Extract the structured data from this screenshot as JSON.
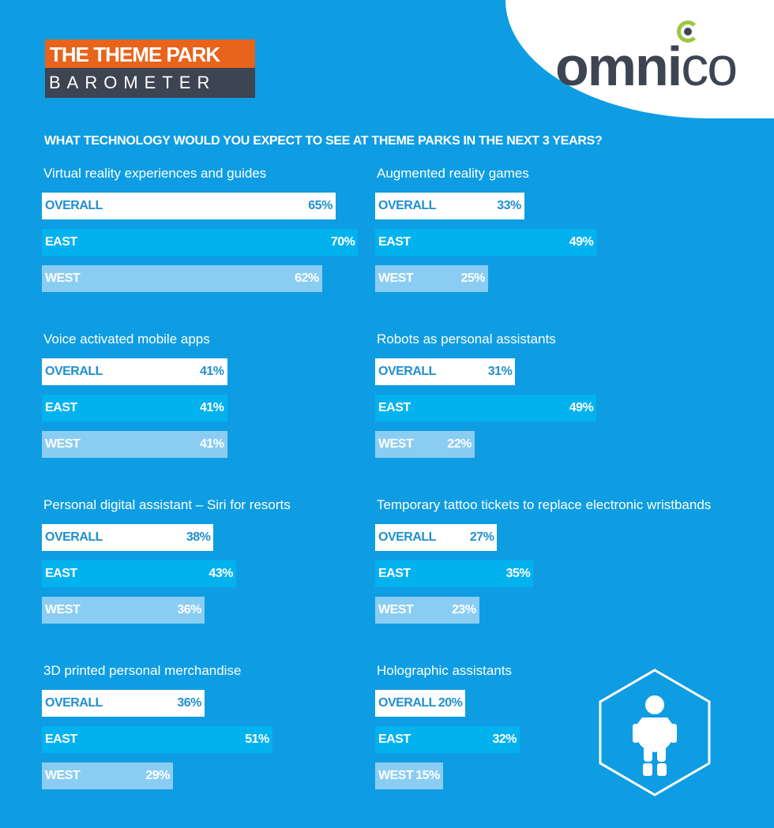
{
  "brand": {
    "line1": "THE THEME PARK",
    "line2": "BAROMETER"
  },
  "logo": {
    "text_main": "omni",
    "text_tail": "co",
    "accent_color": "#9bc63c"
  },
  "colors": {
    "background": "#0e9de2",
    "overall": "#ffffff",
    "east": "#02b2ef",
    "west": "#8bcdf2",
    "brand_orange": "#e8641c"
  },
  "icon": "robot-in-hexagon-icon",
  "chart_data": {
    "type": "bar",
    "orientation": "horizontal",
    "title": "WHAT TECHNOLOGY WOULD YOU EXPECT TO SEE AT THEME PARKS IN THE NEXT 3 YEARS?",
    "unit": "%",
    "series_labels": [
      "OVERALL",
      "EAST",
      "WEST"
    ],
    "groups": [
      {
        "title": "Virtual reality experiences and guides",
        "values": [
          65,
          70,
          62
        ]
      },
      {
        "title": "Augmented reality games",
        "values": [
          33,
          49,
          25
        ]
      },
      {
        "title": "Voice activated mobile apps",
        "values": [
          41,
          41,
          41
        ]
      },
      {
        "title": "Robots as personal assistants",
        "values": [
          31,
          49,
          22
        ]
      },
      {
        "title": "Personal digital assistant – Siri for resorts",
        "values": [
          38,
          43,
          36
        ]
      },
      {
        "title": "Temporary tattoo tickets to replace electronic wristbands",
        "values": [
          27,
          35,
          23
        ]
      },
      {
        "title": "3D printed personal merchandise",
        "values": [
          36,
          51,
          29
        ]
      },
      {
        "title": "Holographic assistants",
        "values": [
          20,
          32,
          15
        ]
      }
    ]
  }
}
